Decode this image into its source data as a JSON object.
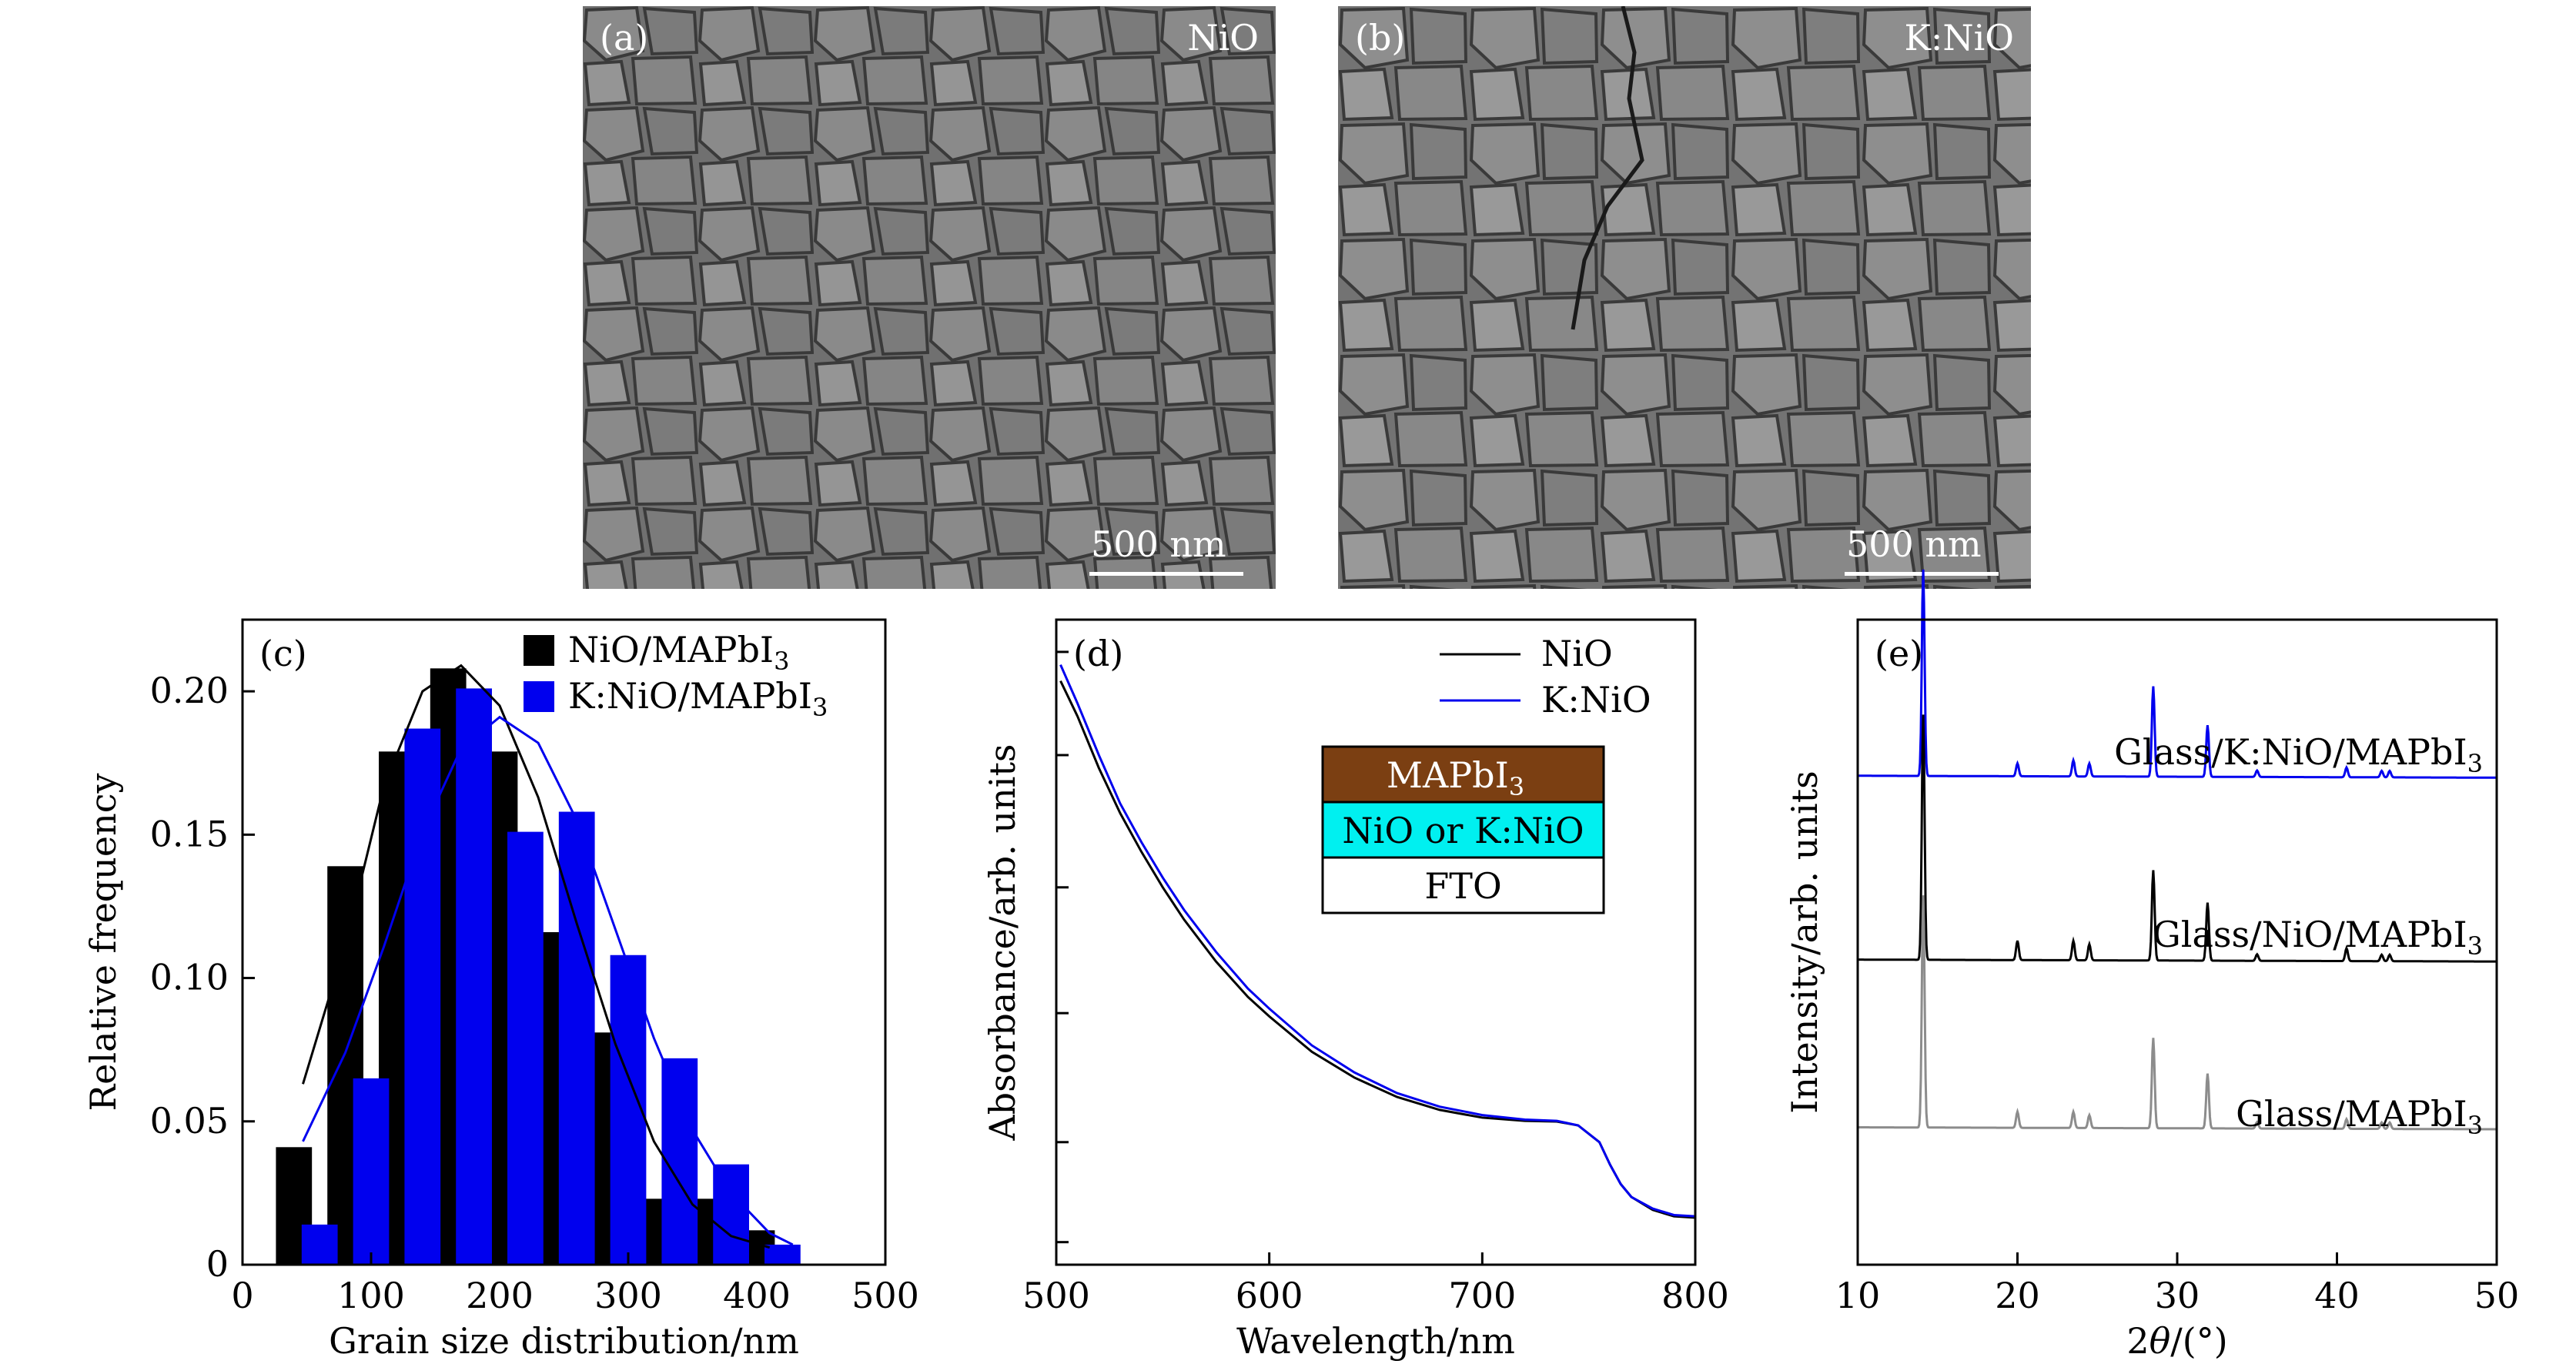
{
  "figure": {
    "panels": {
      "a": {
        "tag": "(a)",
        "sample": "NiO",
        "scale": "500 nm"
      },
      "b": {
        "tag": "(b)",
        "sample": "K:NiO",
        "scale": "500 nm"
      }
    }
  },
  "colors": {
    "black": "#000000",
    "blue": "#0000ee",
    "gray": "#8c8c8c",
    "mapbi3": "#7b3f12",
    "nio": "#00f0f0",
    "fto": "#ffffff"
  },
  "chart_data": [
    {
      "id": "c",
      "panel_label": "(c)",
      "type": "bar",
      "xlabel": "Grain size distribution/nm",
      "ylabel": "Relative frequency",
      "xlim": [
        0,
        500
      ],
      "ylim": [
        0,
        0.225
      ],
      "xticks": [
        0,
        100,
        200,
        300,
        400,
        500
      ],
      "yticks": [
        0,
        0.05,
        0.1,
        0.15,
        0.2
      ],
      "ytick_labels": [
        "0",
        "0.05",
        "0.10",
        "0.15",
        "0.20"
      ],
      "legend_position": "top-right",
      "series": [
        {
          "name": "NiO/MAPbI",
          "name_sub": "3",
          "color": "#000000",
          "x": [
            40,
            80,
            120,
            160,
            200,
            240,
            280,
            320,
            360,
            400
          ],
          "values": [
            0.041,
            0.139,
            0.179,
            0.208,
            0.179,
            0.116,
            0.081,
            0.023,
            0.023,
            0.012
          ],
          "fit": [
            [
              47,
              0.063
            ],
            [
              80,
              0.112
            ],
            [
              110,
              0.167
            ],
            [
              140,
              0.2
            ],
            [
              170,
              0.209
            ],
            [
              200,
              0.195
            ],
            [
              230,
              0.163
            ],
            [
              260,
              0.119
            ],
            [
              290,
              0.077
            ],
            [
              320,
              0.043
            ],
            [
              350,
              0.021
            ],
            [
              380,
              0.01
            ],
            [
              410,
              0.006
            ]
          ]
        },
        {
          "name": "K:NiO/MAPbI",
          "name_sub": "3",
          "color": "#0000ee",
          "x": [
            60,
            100,
            140,
            180,
            220,
            260,
            300,
            340,
            380,
            420
          ],
          "values": [
            0.014,
            0.065,
            0.187,
            0.201,
            0.151,
            0.158,
            0.108,
            0.072,
            0.035,
            0.007
          ],
          "fit": [
            [
              47,
              0.043
            ],
            [
              80,
              0.074
            ],
            [
              110,
              0.111
            ],
            [
              140,
              0.151
            ],
            [
              170,
              0.18
            ],
            [
              200,
              0.191
            ],
            [
              230,
              0.182
            ],
            [
              260,
              0.155
            ],
            [
              290,
              0.117
            ],
            [
              320,
              0.079
            ],
            [
              350,
              0.047
            ],
            [
              380,
              0.025
            ],
            [
              410,
              0.011
            ],
            [
              428,
              0.007
            ]
          ]
        }
      ]
    },
    {
      "id": "d",
      "panel_label": "(d)",
      "type": "line",
      "xlabel": "Wavelength/nm",
      "ylabel": "Absorbance/arb. units",
      "xlim": [
        500,
        800
      ],
      "ylim": [
        0,
        1
      ],
      "xticks": [
        500,
        600,
        700,
        800
      ],
      "yticks_unlabeled": [
        0.035,
        0.19,
        0.39,
        0.585,
        0.79,
        0.95
      ],
      "legend_position": "top-right",
      "layer_stack": [
        "MAPbI3",
        "NiO or K:NiO",
        "FTO"
      ],
      "layer_stack_display": {
        "top": "MAPbI",
        "top_sub": "3",
        "middle": "NiO or K:NiO",
        "bottom": "FTO"
      },
      "series": [
        {
          "name": "NiO",
          "color": "#000000",
          "x": [
            502,
            510,
            520,
            530,
            540,
            550,
            560,
            575,
            590,
            600,
            620,
            640,
            660,
            680,
            700,
            720,
            735,
            745,
            755,
            760,
            765,
            770,
            780,
            790,
            800
          ],
          "y": [
            0.905,
            0.85,
            0.77,
            0.7,
            0.64,
            0.585,
            0.535,
            0.47,
            0.415,
            0.385,
            0.33,
            0.29,
            0.26,
            0.24,
            0.228,
            0.223,
            0.222,
            0.216,
            0.19,
            0.155,
            0.125,
            0.105,
            0.085,
            0.075,
            0.073
          ]
        },
        {
          "name": "K:NiO",
          "color": "#0000ee",
          "x": [
            502,
            510,
            520,
            530,
            540,
            550,
            560,
            575,
            590,
            600,
            620,
            640,
            660,
            680,
            700,
            720,
            735,
            745,
            755,
            760,
            765,
            770,
            780,
            790,
            800
          ],
          "y": [
            0.93,
            0.87,
            0.79,
            0.715,
            0.655,
            0.6,
            0.55,
            0.485,
            0.428,
            0.397,
            0.34,
            0.298,
            0.266,
            0.245,
            0.232,
            0.225,
            0.223,
            0.216,
            0.19,
            0.155,
            0.125,
            0.105,
            0.087,
            0.077,
            0.075
          ]
        }
      ]
    },
    {
      "id": "e",
      "panel_label": "(e)",
      "type": "line",
      "xlabel_prefix": "2",
      "xlabel_theta": "θ",
      "xlabel_suffix": "/(°)",
      "ylabel": "Intensity/arb. units",
      "xlim": [
        10,
        50
      ],
      "xticks": [
        10,
        20,
        30,
        40,
        50
      ],
      "legend_position": "none",
      "series": [
        {
          "name": "Glass/K:NiO/MAPbI",
          "name_sub": "3",
          "color": "#0000ee",
          "baseline": 0.245,
          "peaks": [
            [
              14.1,
              0.32
            ],
            [
              20.0,
              0.02
            ],
            [
              23.5,
              0.025
            ],
            [
              24.5,
              0.02
            ],
            [
              28.5,
              0.14
            ],
            [
              31.9,
              0.08
            ],
            [
              35.0,
              0.01
            ],
            [
              40.6,
              0.015
            ],
            [
              42.8,
              0.01
            ],
            [
              43.3,
              0.01
            ]
          ]
        },
        {
          "name": "Glass/NiO/MAPbI",
          "name_sub": "3",
          "color": "#000000",
          "baseline": 0.53,
          "peaks": [
            [
              14.1,
              0.38
            ],
            [
              20.0,
              0.03
            ],
            [
              23.5,
              0.03
            ],
            [
              24.5,
              0.025
            ],
            [
              28.5,
              0.14
            ],
            [
              31.9,
              0.09
            ],
            [
              35.0,
              0.01
            ],
            [
              40.6,
              0.02
            ],
            [
              42.8,
              0.01
            ],
            [
              43.3,
              0.01
            ]
          ]
        },
        {
          "name": "Glass/MAPbI",
          "name_sub": "3",
          "color": "#8c8c8c",
          "baseline": 0.79,
          "peaks": [
            [
              14.1,
              0.36
            ],
            [
              20.0,
              0.025
            ],
            [
              23.5,
              0.025
            ],
            [
              24.5,
              0.02
            ],
            [
              28.5,
              0.14
            ],
            [
              31.9,
              0.085
            ],
            [
              35.0,
              0.01
            ],
            [
              40.6,
              0.015
            ],
            [
              42.8,
              0.01
            ],
            [
              43.3,
              0.01
            ]
          ]
        }
      ]
    }
  ]
}
